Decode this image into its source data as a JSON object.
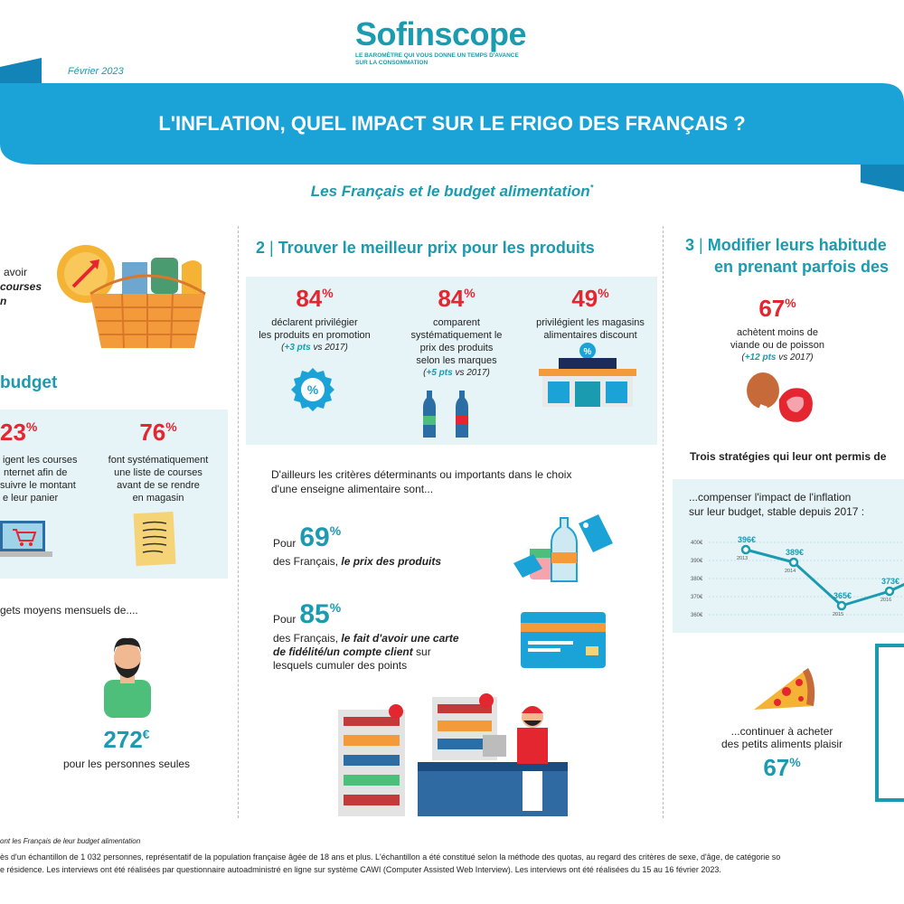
{
  "colors": {
    "teal": "#1a9bb0",
    "red": "#e3262f",
    "banner": "#1ba3d8",
    "panel": "#e6f4f8",
    "navy": "#1b2c5b"
  },
  "header": {
    "logo": "Sofinscope",
    "tagline_line1": "LE BAROMÈTRE QUI VOUS DONNE UN TEMPS D'AVANCE",
    "tagline_line2": "SUR LA CONSOMMATION",
    "date": "Février 2023",
    "title": "L'INFLATION, QUEL IMPACT SUR LE FRIGO DES FRANÇAIS ?",
    "subtitle": "Les Français et le budget alimentation",
    "subtitle_mark": "*"
  },
  "col1": {
    "frag1_a": "avoir",
    "frag1_b": "courses",
    "frag1_c": "n",
    "heading": "budget",
    "stat1": {
      "value": "23",
      "unit": "%",
      "text": [
        "igent les courses",
        "nternet afin de",
        "suivre le montant",
        "e leur panier"
      ]
    },
    "stat2": {
      "value": "76",
      "unit": "%",
      "text": [
        "font systématiquement",
        "une liste de courses",
        "avant de se rendre",
        "en magasin"
      ]
    },
    "monthly_intro": "gets moyens mensuels de....",
    "amount": {
      "value": "272",
      "unit": "€",
      "label": "pour les personnes seules"
    }
  },
  "col2": {
    "heading_num": "2",
    "heading": "Trouver le meilleur prix pour les produits",
    "stats": [
      {
        "value": "84",
        "unit": "%",
        "lines": [
          "déclarent privilégier",
          "les produits en promotion"
        ],
        "delta": "+3 pts",
        "vs": " vs 2017)",
        "open": "("
      },
      {
        "value": "84",
        "unit": "%",
        "lines": [
          "comparent",
          "systématiquement le",
          "prix des produits",
          "selon les marques"
        ],
        "delta": "+5 pts",
        "vs": " vs 2017)",
        "open": "("
      },
      {
        "value": "49",
        "unit": "%",
        "lines": [
          "privilégient les magasins",
          "alimentaires discount"
        ]
      }
    ],
    "criteria_intro_1": "D'ailleurs les critères déterminants ou importants dans le choix",
    "criteria_intro_2": "d'une enseigne alimentaire sont...",
    "crit1": {
      "pour": "Pour",
      "value": "69",
      "unit": "%",
      "prefix": "des Français, ",
      "bold": "le prix des produits"
    },
    "crit2": {
      "pour": "Pour",
      "value": "85",
      "unit": "%",
      "prefix": "des Français, ",
      "bold1": "le fait d'avoir une carte",
      "bold2": "de fidélité/un compte client",
      "suffix": " sur",
      "line3": "lesquels cumuler des points"
    }
  },
  "col3": {
    "heading_num": "3",
    "heading_line1": "Modifier leurs habitude",
    "heading_line2": "en prenant parfois des",
    "stat1": {
      "value": "67",
      "unit": "%",
      "lines": [
        "achètent moins de",
        "viande ou de poisson"
      ],
      "open": "(",
      "delta": "+12 pts",
      "vs": " vs 2017)"
    },
    "strategies": "Trois stratégies qui leur ont permis de",
    "budget_intro_1": "...compenser l'impact de l'inflation",
    "budget_intro_2": "sur leur budget, stable depuis 2017 :",
    "treat_1": "...continuer à acheter",
    "treat_2": "des petits aliments plaisir",
    "treat_value": "67",
    "treat_unit": "%"
  },
  "chart_data": {
    "type": "line",
    "x": [
      "2013",
      "2014",
      "2015",
      "2016"
    ],
    "series": [
      {
        "values": [
          396,
          389,
          365,
          373
        ]
      }
    ],
    "data_labels": [
      "396€",
      "389€",
      "365€",
      "373€"
    ],
    "y_ticks": [
      "400€",
      "390€",
      "380€",
      "370€",
      "360€"
    ],
    "ylim": [
      360,
      400
    ]
  },
  "footer": {
    "note": "ont les Français de leur budget alimentation",
    "method_1": "ès d'un échantillon de 1 032 personnes, représentatif de la population française âgée de 18 ans et plus. L'échantillon a été constitué selon la méthode des quotas, au regard des critères de sexe, d'âge, de catégorie so",
    "method_2": "e résidence. Les interviews ont été réalisées par questionnaire autoadministré en ligne sur système CAWI (Computer Assisted Web Interview).  Les interviews ont été réalisées du 15 au 16 février 2023."
  }
}
